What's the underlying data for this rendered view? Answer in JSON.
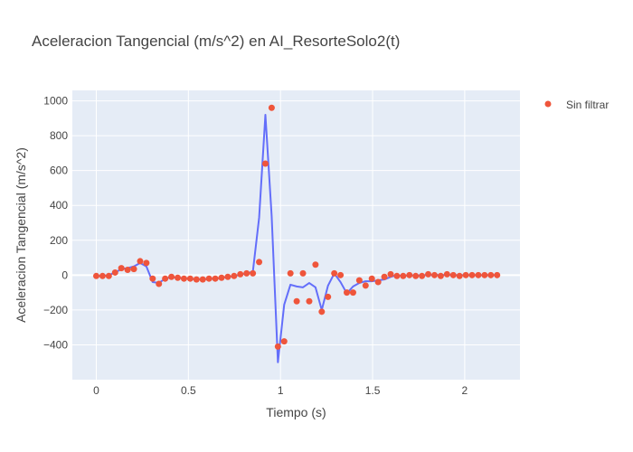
{
  "chart_data": {
    "type": "scatter",
    "title": "Aceleracion Tangencial (m/s^2) en AI_ResorteSolo2(t)",
    "xlabel": "Tiempo (s)",
    "ylabel": "Aceleracion Tangencial (m/s^2)",
    "xlim": [
      -0.13,
      2.3
    ],
    "ylim": [
      -600,
      1060
    ],
    "x_ticks": [
      0,
      0.5,
      1,
      1.5,
      2
    ],
    "x_tick_labels": [
      "0",
      "0.5",
      "1",
      "1.5",
      "2"
    ],
    "y_ticks": [
      -400,
      -200,
      0,
      200,
      400,
      600,
      800,
      1000
    ],
    "y_tick_labels": [
      "−400",
      "−200",
      "0",
      "200",
      "400",
      "600",
      "800",
      "1000"
    ],
    "grid": true,
    "legend_position": "top-right",
    "series": [
      {
        "name": "Sin filtrar",
        "mode": "markers",
        "color": "#EF553B",
        "x": [
          0,
          0.034,
          0.068,
          0.102,
          0.136,
          0.17,
          0.204,
          0.238,
          0.272,
          0.306,
          0.34,
          0.374,
          0.408,
          0.442,
          0.476,
          0.51,
          0.544,
          0.578,
          0.612,
          0.646,
          0.68,
          0.714,
          0.748,
          0.782,
          0.816,
          0.85,
          0.884,
          0.918,
          0.952,
          0.986,
          1.02,
          1.054,
          1.088,
          1.122,
          1.156,
          1.19,
          1.224,
          1.258,
          1.292,
          1.326,
          1.36,
          1.394,
          1.428,
          1.462,
          1.496,
          1.53,
          1.564,
          1.598,
          1.632,
          1.666,
          1.7,
          1.734,
          1.768,
          1.802,
          1.836,
          1.87,
          1.904,
          1.938,
          1.972,
          2.006,
          2.04,
          2.074,
          2.108,
          2.142,
          2.176
        ],
        "y": [
          -5,
          -5,
          -5,
          15,
          40,
          30,
          35,
          80,
          70,
          -20,
          -50,
          -20,
          -10,
          -15,
          -20,
          -20,
          -25,
          -25,
          -20,
          -20,
          -15,
          -10,
          -5,
          5,
          10,
          10,
          75,
          640,
          960,
          -410,
          -380,
          10,
          -150,
          10,
          -150,
          60,
          -210,
          -125,
          10,
          0,
          -100,
          -100,
          -30,
          -60,
          -20,
          -40,
          -10,
          5,
          -5,
          -5,
          0,
          -5,
          -5,
          5,
          0,
          -5,
          5,
          0,
          -5,
          0,
          0,
          0,
          0,
          0,
          0
        ]
      },
      {
        "name": "",
        "mode": "lines",
        "color": "#636EFA",
        "x": [
          0,
          0.034,
          0.068,
          0.102,
          0.136,
          0.17,
          0.204,
          0.238,
          0.272,
          0.306,
          0.34,
          0.374,
          0.408,
          0.442,
          0.476,
          0.51,
          0.544,
          0.578,
          0.612,
          0.646,
          0.68,
          0.714,
          0.748,
          0.782,
          0.816,
          0.85,
          0.884,
          0.918,
          0.952,
          0.986,
          1.02,
          1.054,
          1.088,
          1.122,
          1.156,
          1.19,
          1.224,
          1.258,
          1.292,
          1.326,
          1.36,
          1.394,
          1.428,
          1.462,
          1.496,
          1.53,
          1.564,
          1.598,
          1.632,
          1.666,
          1.7,
          1.734,
          1.768,
          1.802,
          1.836,
          1.87,
          1.904,
          1.938,
          1.972,
          2.006,
          2.04,
          2.074,
          2.108,
          2.142,
          2.176
        ],
        "y": [
          -5,
          -5,
          0,
          15,
          35,
          40,
          50,
          70,
          50,
          -40,
          -45,
          -20,
          -12,
          -15,
          -18,
          -22,
          -24,
          -24,
          -22,
          -20,
          -16,
          -10,
          -5,
          2,
          10,
          20,
          330,
          920,
          340,
          -500,
          -170,
          -55,
          -65,
          -70,
          -45,
          -70,
          -200,
          -60,
          10,
          -40,
          -105,
          -65,
          -45,
          -35,
          -35,
          -30,
          -25,
          -10,
          0,
          -5,
          0,
          -2,
          0,
          0,
          2,
          0,
          2,
          0,
          0,
          0,
          0,
          0,
          0,
          0,
          0
        ]
      }
    ]
  }
}
